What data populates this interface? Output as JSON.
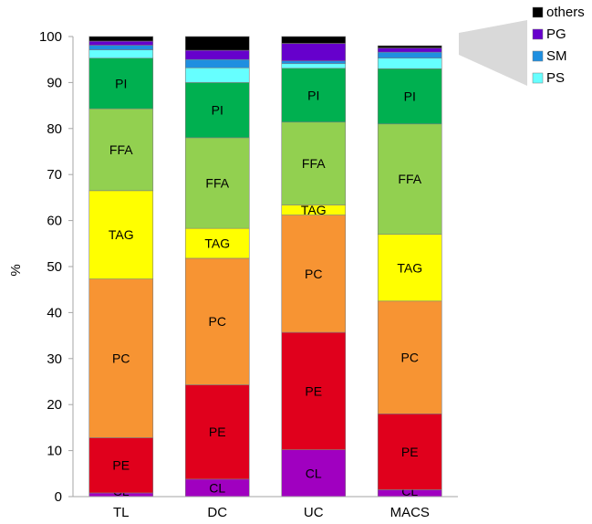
{
  "chart_data": {
    "type": "bar",
    "stacked": true,
    "title": "",
    "xlabel": "",
    "ylabel": "%",
    "ylim": [
      0,
      100
    ],
    "yticks": [
      0,
      10,
      20,
      30,
      40,
      50,
      60,
      70,
      80,
      90,
      100
    ],
    "grid": false,
    "categories": [
      "TL",
      "DC",
      "UC",
      "MACS"
    ],
    "legend_position": "top-right",
    "legend": [
      "others",
      "PG",
      "SM",
      "PS"
    ],
    "series": [
      {
        "name": "CL",
        "color": "#A000C0",
        "values": [
          0.8,
          3.8,
          10.2,
          1.5
        ]
      },
      {
        "name": "PE",
        "color": "#E0001C",
        "values": [
          12.0,
          20.5,
          25.5,
          16.5
        ]
      },
      {
        "name": "PC",
        "color": "#F79433",
        "values": [
          34.5,
          27.5,
          25.5,
          24.5
        ]
      },
      {
        "name": "TAG",
        "color": "#FFFF00",
        "values": [
          19.2,
          6.5,
          2.2,
          14.5
        ]
      },
      {
        "name": "FFA",
        "color": "#92D050",
        "values": [
          17.8,
          19.7,
          18.0,
          24.0
        ]
      },
      {
        "name": "PI",
        "color": "#00B050",
        "values": [
          11.0,
          12.0,
          11.7,
          12.0
        ]
      },
      {
        "name": "PS",
        "color": "#66FFFF",
        "values": [
          1.8,
          3.2,
          1.0,
          2.3
        ]
      },
      {
        "name": "SM",
        "color": "#1F8FE0",
        "values": [
          1.0,
          1.8,
          0.6,
          1.3
        ]
      },
      {
        "name": "PG",
        "color": "#6600CC",
        "values": [
          0.9,
          2.0,
          3.8,
          0.9
        ]
      },
      {
        "name": "others",
        "color": "#000000",
        "values": [
          1.0,
          3.0,
          1.5,
          0.5
        ]
      }
    ]
  }
}
